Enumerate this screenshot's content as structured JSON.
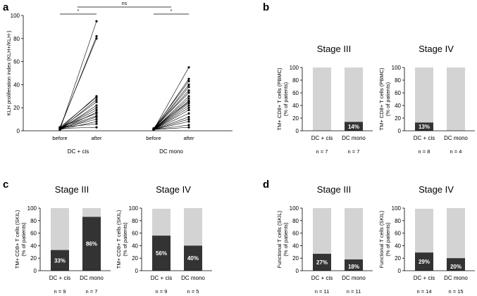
{
  "colors": {
    "filled": "#333333",
    "unfilled": "#d3d3d3",
    "axis": "#000000",
    "label_on_dark": "#ffffff"
  },
  "panels": [
    {
      "letter": "a"
    },
    {
      "letter": "b"
    },
    {
      "letter": "c"
    },
    {
      "letter": "d"
    }
  ],
  "chart_data": [
    {
      "panel": "a",
      "type": "line",
      "subtype": "paired-dot-plot",
      "ylabel": "KLH proliferation index (KLH+/KLH-)",
      "ylim": [
        0,
        100
      ],
      "yticks": [
        0,
        20,
        40,
        60,
        80,
        100
      ],
      "groups": [
        {
          "name": "DC + cis",
          "xlabels": [
            "before",
            "after"
          ],
          "pairs": [
            [
              1,
              95
            ],
            [
              2,
              82
            ],
            [
              3,
              80
            ],
            [
              2,
              30
            ],
            [
              3,
              29
            ],
            [
              1,
              27
            ],
            [
              2,
              25
            ],
            [
              1,
              22
            ],
            [
              2,
              20
            ],
            [
              2,
              18
            ],
            [
              1,
              16
            ],
            [
              3,
              15
            ],
            [
              2,
              13
            ],
            [
              1,
              12
            ],
            [
              2,
              10
            ],
            [
              1,
              8
            ],
            [
              3,
              6
            ],
            [
              2,
              3
            ]
          ]
        },
        {
          "name": "DC mono",
          "xlabels": [
            "before",
            "after"
          ],
          "pairs": [
            [
              1,
              55
            ],
            [
              1,
              45
            ],
            [
              2,
              43
            ],
            [
              1,
              40
            ],
            [
              1,
              38
            ],
            [
              1,
              35
            ],
            [
              2,
              33
            ],
            [
              1,
              30
            ],
            [
              1,
              28
            ],
            [
              1,
              26
            ],
            [
              2,
              25
            ],
            [
              1,
              24
            ],
            [
              1,
              22
            ],
            [
              1,
              20
            ],
            [
              1,
              18
            ],
            [
              1,
              15
            ],
            [
              1,
              12
            ],
            [
              1,
              10
            ],
            [
              1,
              8
            ],
            [
              1,
              5
            ],
            [
              1,
              3
            ]
          ]
        }
      ],
      "annotations": [
        {
          "text": "*",
          "between": [
            "DC + cis before",
            "DC + cis after"
          ]
        },
        {
          "text": "*",
          "between": [
            "DC mono before",
            "DC mono after"
          ]
        },
        {
          "text": "ns",
          "between": [
            "DC + cis before",
            "DC mono after"
          ]
        }
      ]
    },
    {
      "panel": "b",
      "type": "bar",
      "subtype": "stacked-percent",
      "title": "Stage III",
      "ylabel": "TM+ CD8+ T cells (PBMC)",
      "ylabel2": "(% of patients)",
      "ylim": [
        0,
        100
      ],
      "yticks": [
        0,
        20,
        40,
        60,
        80,
        100
      ],
      "categories": [
        "DC + cis",
        "DC mono"
      ],
      "values": [
        0,
        14
      ],
      "totals": [
        100,
        100
      ],
      "labels": [
        "",
        "14%"
      ],
      "n": [
        "n = 7",
        "n = 7"
      ]
    },
    {
      "panel": "b",
      "type": "bar",
      "subtype": "stacked-percent",
      "title": "Stage IV",
      "ylabel": "TM+ CD8+ T cells (PBMC)",
      "ylabel2": "(% of patients)",
      "ylim": [
        0,
        100
      ],
      "yticks": [
        0,
        20,
        40,
        60,
        80,
        100
      ],
      "categories": [
        "DC + cis",
        "DC mono"
      ],
      "values": [
        13,
        0
      ],
      "totals": [
        100,
        100
      ],
      "labels": [
        "13%",
        ""
      ],
      "n": [
        "n = 8",
        "n = 4"
      ]
    },
    {
      "panel": "c",
      "type": "bar",
      "subtype": "stacked-percent",
      "title": "Stage III",
      "ylabel": "TM+ CD8+ T cells (SKIL)",
      "ylabel2": "(% of patients)",
      "ylim": [
        0,
        100
      ],
      "yticks": [
        0,
        20,
        40,
        60,
        80,
        100
      ],
      "categories": [
        "DC + cis",
        "DC mono"
      ],
      "values": [
        33,
        86
      ],
      "totals": [
        100,
        100
      ],
      "labels": [
        "33%",
        "86%"
      ],
      "n": [
        "n = 9",
        "n = 7"
      ]
    },
    {
      "panel": "c",
      "type": "bar",
      "subtype": "stacked-percent",
      "title": "Stage IV",
      "ylabel": "TM+ CD8+ T cells (SKIL)",
      "ylabel2": "(% of patients)",
      "ylim": [
        0,
        100
      ],
      "yticks": [
        0,
        20,
        40,
        60,
        80,
        100
      ],
      "categories": [
        "DC + cis",
        "DC mono"
      ],
      "values": [
        56,
        40
      ],
      "totals": [
        99,
        100
      ],
      "labels": [
        "56%",
        "40%"
      ],
      "n": [
        "n = 9",
        "n = 5"
      ]
    },
    {
      "panel": "d",
      "type": "bar",
      "subtype": "stacked-percent",
      "title": "Stage III",
      "ylabel": "Functional T cells (SKIL)",
      "ylabel2": "(% of patients)",
      "ylim": [
        0,
        100
      ],
      "yticks": [
        0,
        20,
        40,
        60,
        80,
        100
      ],
      "categories": [
        "DC + cis",
        "DC mono"
      ],
      "values": [
        27,
        18
      ],
      "totals": [
        100,
        100
      ],
      "labels": [
        "27%",
        "18%"
      ],
      "n": [
        "n = 11",
        "n = 11"
      ]
    },
    {
      "panel": "d",
      "type": "bar",
      "subtype": "stacked-percent",
      "title": "Stage IV",
      "ylabel": "Functional T cells (SKIL)",
      "ylabel2": "(% of patients)",
      "ylim": [
        0,
        100
      ],
      "yticks": [
        0,
        20,
        40,
        60,
        80,
        100
      ],
      "categories": [
        "DC + cis",
        "DC mono"
      ],
      "values": [
        29,
        20
      ],
      "totals": [
        99,
        100
      ],
      "labels": [
        "29%",
        "20%"
      ],
      "n": [
        "n = 14",
        "n = 15"
      ]
    }
  ]
}
